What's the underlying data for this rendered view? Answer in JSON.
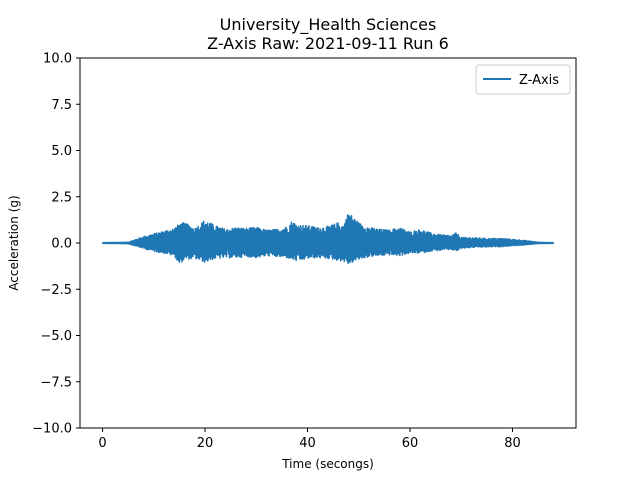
{
  "chart_data": {
    "type": "line",
    "title": "University_Health Sciences",
    "subtitle": "Z-Axis Raw: 2021-09-11 Run 6",
    "xlabel": "Time (secongs)",
    "ylabel": "Acceleration (g)",
    "xlim": [
      -4.4,
      92.4
    ],
    "ylim": [
      -10.0,
      10.0
    ],
    "x_ticks": [
      0,
      20,
      40,
      60,
      80
    ],
    "x_tick_labels": [
      "0",
      "20",
      "40",
      "60",
      "80"
    ],
    "y_ticks": [
      -10.0,
      -7.5,
      -5.0,
      -2.5,
      0.0,
      2.5,
      5.0,
      7.5,
      10.0
    ],
    "y_tick_labels": [
      "−10.0",
      "−7.5",
      "−5.0",
      "−2.5",
      "0.0",
      "2.5",
      "5.0",
      "7.5",
      "10.0"
    ],
    "grid": false,
    "legend_position": "top-right",
    "series": [
      {
        "name": "Z-Axis",
        "color": "#1f77b4",
        "envelope": {
          "time": [
            0,
            5,
            6,
            8,
            10,
            12,
            14,
            15,
            16,
            18,
            20,
            22,
            24,
            26,
            28,
            30,
            32,
            34,
            36,
            37,
            38,
            40,
            42,
            44,
            46,
            47,
            48,
            50,
            52,
            54,
            56,
            58,
            60,
            62,
            64,
            66,
            68,
            69,
            70,
            72,
            75,
            78,
            80,
            82,
            84,
            85,
            88
          ],
          "max": [
            0.02,
            0.04,
            0.15,
            0.35,
            0.5,
            0.65,
            0.8,
            1.05,
            1.1,
            0.8,
            1.25,
            0.95,
            0.75,
            0.85,
            0.8,
            0.85,
            0.7,
            0.75,
            0.9,
            1.2,
            1.0,
            0.95,
            0.85,
            0.9,
            1.1,
            0.95,
            1.7,
            1.1,
            0.85,
            0.75,
            0.7,
            0.85,
            0.6,
            0.75,
            0.55,
            0.45,
            0.4,
            0.55,
            0.3,
            0.3,
            0.25,
            0.25,
            0.2,
            0.15,
            0.08,
            0.04,
            0.02
          ],
          "min": [
            -0.02,
            -0.04,
            -0.12,
            -0.3,
            -0.45,
            -0.55,
            -0.7,
            -1.15,
            -0.9,
            -0.85,
            -1.05,
            -0.85,
            -0.8,
            -0.8,
            -0.75,
            -0.8,
            -0.7,
            -0.75,
            -0.8,
            -0.9,
            -1.0,
            -0.85,
            -0.8,
            -0.85,
            -0.95,
            -1.0,
            -1.15,
            -0.9,
            -0.75,
            -0.7,
            -0.65,
            -0.7,
            -0.55,
            -0.55,
            -0.45,
            -0.4,
            -0.35,
            -0.45,
            -0.3,
            -0.25,
            -0.22,
            -0.2,
            -0.15,
            -0.12,
            -0.06,
            -0.03,
            -0.02
          ]
        }
      }
    ]
  }
}
